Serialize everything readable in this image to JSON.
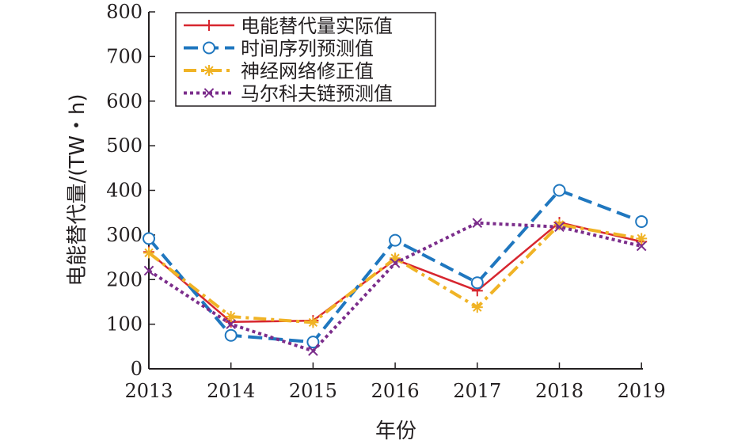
{
  "chart_data": {
    "type": "line",
    "xlabel": "年份",
    "ylabel": "电能替代量/(TW・h)",
    "categories": [
      "2013",
      "2014",
      "2015",
      "2016",
      "2017",
      "2018",
      "2019"
    ],
    "ylim": [
      0,
      800
    ],
    "yticks": [
      0,
      100,
      200,
      300,
      400,
      500,
      600,
      700,
      800
    ],
    "grid": false,
    "legend_position": "top-left",
    "series": [
      {
        "name": "电能替代量实际值",
        "values": [
          262,
          105,
          108,
          245,
          175,
          328,
          285
        ],
        "color": "#d7262f",
        "dash": "solid",
        "marker": "plus"
      },
      {
        "name": "时间序列预测值",
        "values": [
          292,
          75,
          60,
          288,
          193,
          400,
          330
        ],
        "color": "#1f77bf",
        "dash": "dashed",
        "marker": "circle"
      },
      {
        "name": "神经网络修正值",
        "values": [
          260,
          117,
          104,
          248,
          138,
          323,
          292
        ],
        "color": "#f0b325",
        "dash": "dashdot",
        "marker": "asterisk"
      },
      {
        "name": "马尔科夫链预测值",
        "values": [
          220,
          100,
          40,
          237,
          327,
          318,
          275
        ],
        "color": "#7b2d8b",
        "dash": "dotted",
        "marker": "x"
      }
    ]
  }
}
